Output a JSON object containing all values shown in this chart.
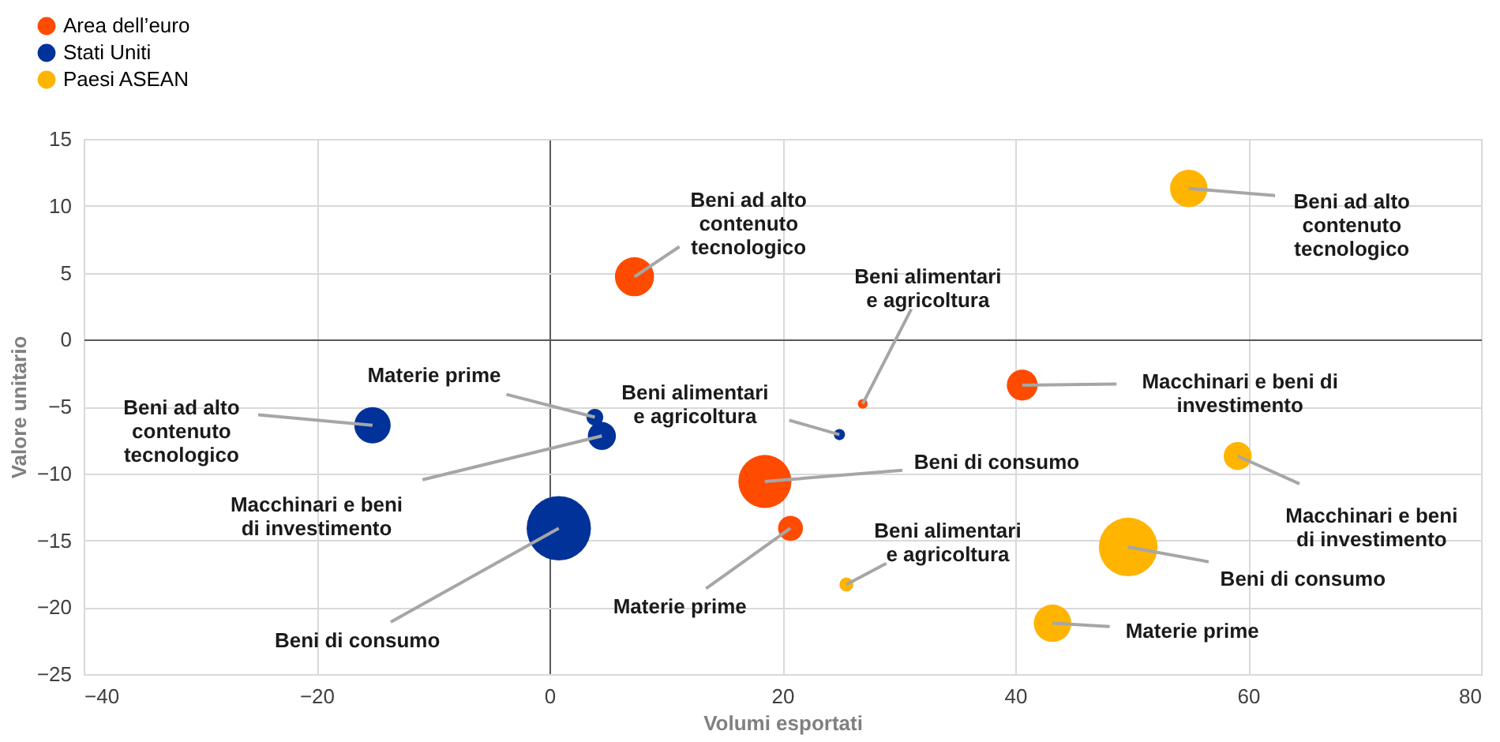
{
  "chart_data": {
    "type": "bubble",
    "xlabel": "Volumi esportati",
    "ylabel": "Valore unitario",
    "xlim": [
      -40,
      80
    ],
    "xticks": [
      -40,
      -20,
      0,
      20,
      40,
      60,
      80
    ],
    "ylim": [
      -25,
      15
    ],
    "yticks": [
      -25,
      -20,
      -15,
      -10,
      -5,
      0,
      5,
      10,
      15
    ],
    "grid": true,
    "legend": "top left",
    "series": [
      {
        "name": "Area dell’euro",
        "color": "#ff4b00",
        "x": [
          7.3,
          26.9,
          40.6,
          18.5,
          20.7
        ],
        "values": [
          4.7,
          -4.8,
          -3.4,
          -10.6,
          -14.1
        ],
        "sizes": [
          0.37,
          0.023,
          0.23,
          0.68,
          0.15
        ]
      },
      {
        "name": "Stati Uniti",
        "color": "#003299",
        "x": [
          -15.2,
          3.9,
          4.5,
          0.8,
          24.9
        ],
        "values": [
          -6.4,
          -5.8,
          -7.2,
          -14.1,
          -7.1
        ],
        "sizes": [
          0.32,
          0.068,
          0.19,
          1,
          0.03
        ]
      },
      {
        "name": "Paesi ASEAN",
        "color": "#ffb400",
        "x": [
          54.9,
          59.1,
          49.7,
          43.2,
          25.5
        ],
        "values": [
          11.3,
          -8.7,
          -15.5,
          -21.2,
          -18.3
        ],
        "sizes": [
          0.34,
          0.19,
          0.83,
          0.34,
          0.047
        ]
      }
    ],
    "annotations": [
      {
        "text": "Beni ad alto\ncontenuto\ntecnologico",
        "x": 7.3,
        "y": 4.7
      },
      {
        "text": "Beni alimentari\ne agricoltura",
        "x": 26.9,
        "y": -4.8
      },
      {
        "text": "Macchinari e beni di\ninvestimento",
        "x": 40.6,
        "y": -3.4
      },
      {
        "text": "Beni di consumo",
        "x": 18.5,
        "y": -10.6
      },
      {
        "text": "Materie prime",
        "x": 20.7,
        "y": -14.1
      },
      {
        "text": "Beni ad alto\ncontenuto\ntecnologico",
        "x": -15.2,
        "y": -6.4
      },
      {
        "text": "Materie prime",
        "x": 3.9,
        "y": -5.8
      },
      {
        "text": "Macchinari e beni\ndi investimento",
        "x": 4.5,
        "y": -7.2
      },
      {
        "text": "Beni di consumo",
        "x": 0.8,
        "y": -14.1
      },
      {
        "text": "Beni alimentari\ne agricoltura",
        "x": 24.9,
        "y": -7.1
      },
      {
        "text": "Beni ad alto\ncontenuto\ntecnologico",
        "x": 54.9,
        "y": 11.3
      },
      {
        "text": "Macchinari e beni\ndi investimento",
        "x": 59.1,
        "y": -8.7
      },
      {
        "text": "Beni di consumo",
        "x": 49.7,
        "y": -15.5
      },
      {
        "text": "Materie prime",
        "x": 43.2,
        "y": -21.2
      },
      {
        "text": "Beni alimentari\ne agricoltura",
        "x": 25.5,
        "y": -18.3
      }
    ]
  }
}
